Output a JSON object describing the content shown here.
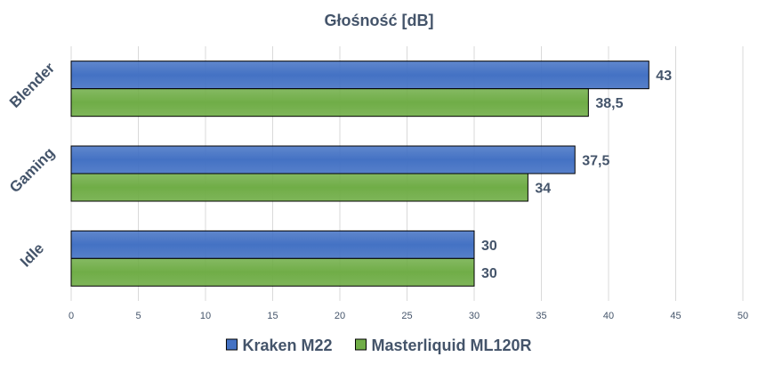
{
  "chart_data": {
    "type": "bar",
    "orientation": "horizontal",
    "title": "Głośność [dB]",
    "categories": [
      "Blender",
      "Gaming",
      "Idle"
    ],
    "series": [
      {
        "name": "Kraken M22",
        "values": [
          43,
          37.5,
          30
        ],
        "labels": [
          "43",
          "37,5",
          "30"
        ],
        "color": "#4472c4"
      },
      {
        "name": "Masterliquid ML120R",
        "values": [
          38.5,
          34,
          30
        ],
        "labels": [
          "38,5",
          "34",
          "30"
        ],
        "color": "#70ad47"
      }
    ],
    "xlim": [
      0,
      50
    ],
    "xticks": [
      0,
      5,
      10,
      15,
      20,
      25,
      30,
      35,
      40,
      45,
      50
    ],
    "xlabel": "",
    "ylabel": "",
    "grid": "vertical",
    "legend": "bottom",
    "colors": {
      "text": "#44546a",
      "grid": "#d9d9d9",
      "bar_outline": "#000000"
    }
  }
}
